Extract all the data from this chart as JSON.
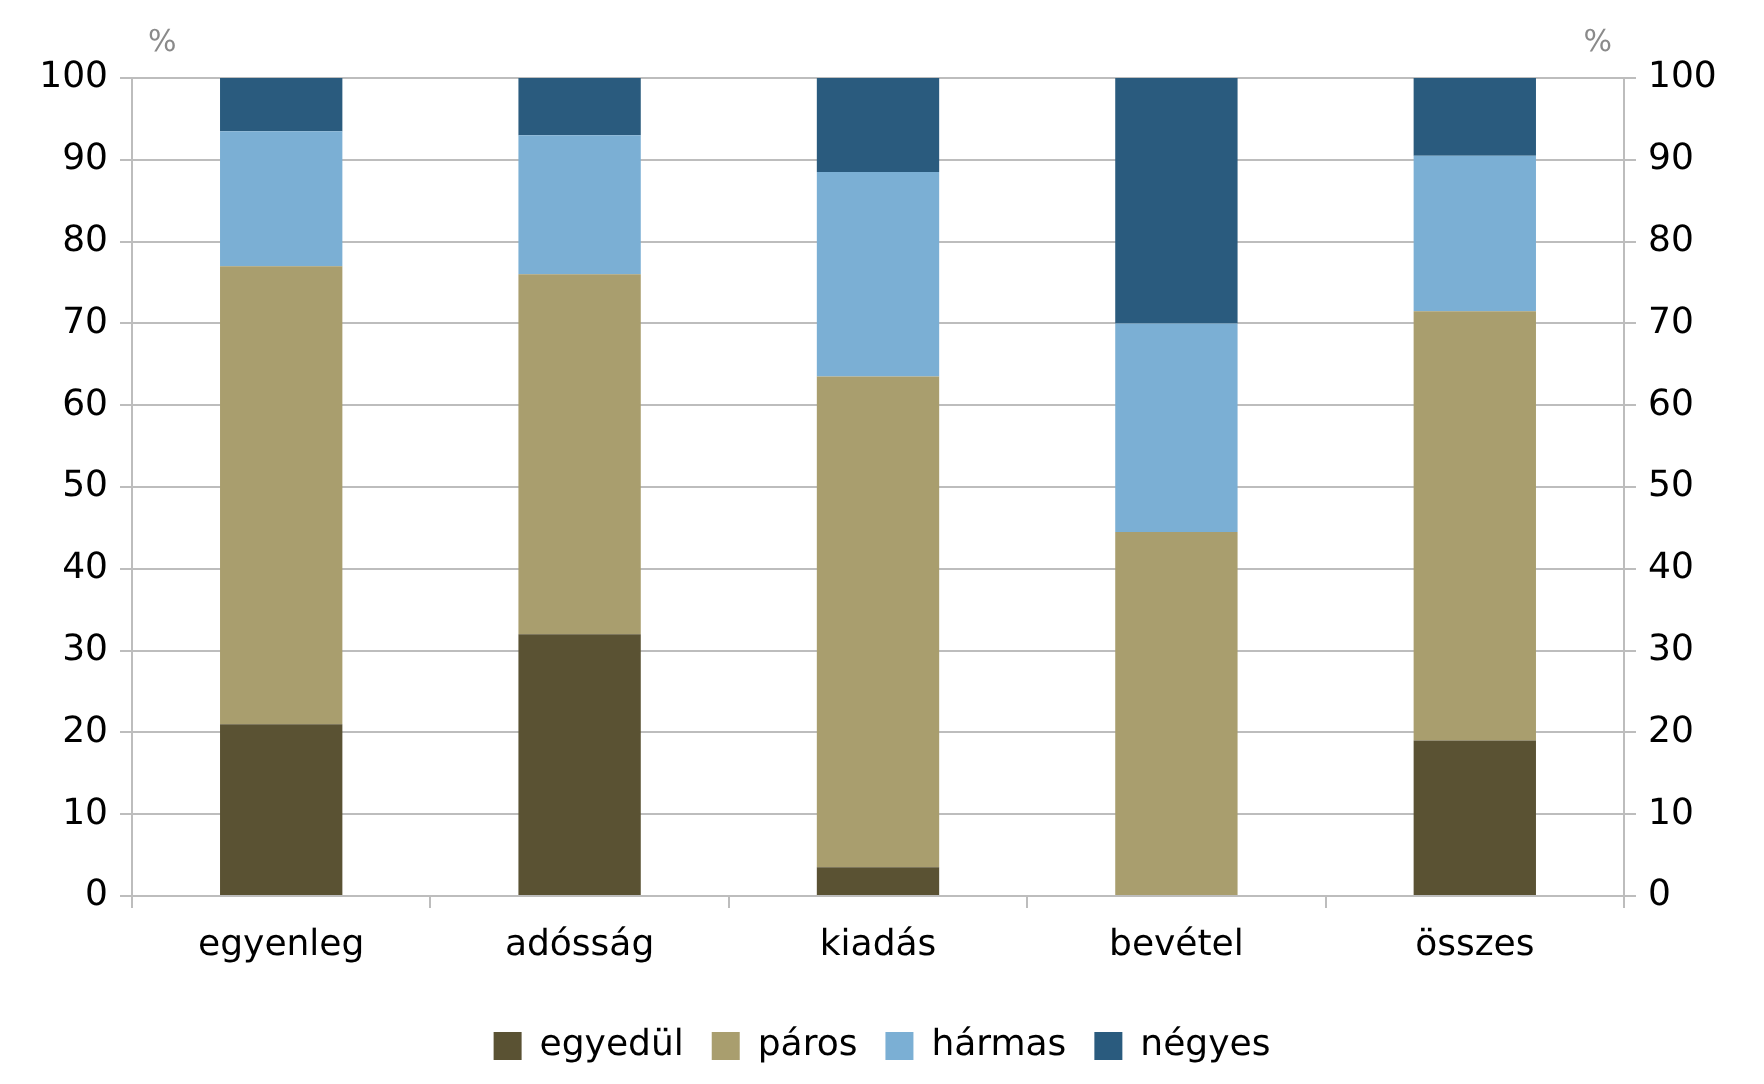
{
  "chart_data": {
    "type": "bar",
    "stacked": true,
    "categories": [
      "egyenleg",
      "adósság",
      "kiadás",
      "bevétel",
      "összes"
    ],
    "series": [
      {
        "name": "egyedül",
        "color": "#5a5233",
        "values": [
          21,
          32,
          3.5,
          0,
          19
        ]
      },
      {
        "name": "páros",
        "color": "#a99e6e",
        "values": [
          56,
          44,
          60,
          44.5,
          52.5
        ]
      },
      {
        "name": "hármas",
        "color": "#7bafd4",
        "values": [
          16.5,
          17,
          25,
          25.5,
          19
        ]
      },
      {
        "name": "négyes",
        "color": "#2a5b7e",
        "values": [
          6.5,
          7,
          11.5,
          30,
          9.5
        ]
      }
    ],
    "ylabel": "%",
    "y2label": "%",
    "ylim": [
      0,
      100
    ],
    "yticks": [
      0,
      10,
      20,
      30,
      40,
      50,
      60,
      70,
      80,
      90,
      100
    ],
    "y2lim": [
      0,
      100
    ],
    "y2ticks": [
      0,
      10,
      20,
      30,
      40,
      50,
      60,
      70,
      80,
      90,
      100
    ],
    "grid": "y",
    "legend": "bottom"
  }
}
